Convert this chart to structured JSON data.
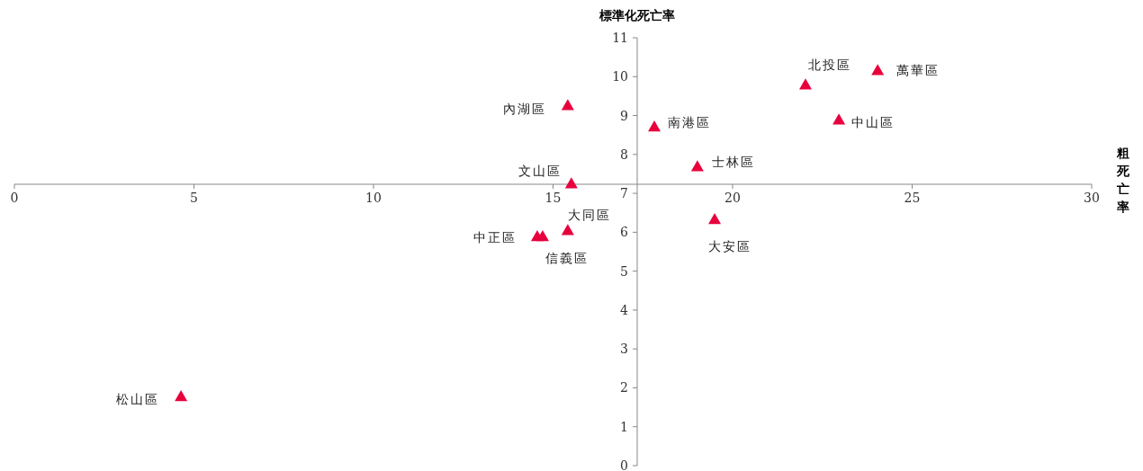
{
  "chart_data": {
    "type": "scatter",
    "xlabel": "粗死亡率",
    "ylabel": "標準化死亡率",
    "xlim": [
      0,
      30
    ],
    "xticks": [
      0,
      5,
      10,
      15,
      20,
      25,
      30
    ],
    "ylim": [
      0,
      11
    ],
    "yticks": [
      0,
      1,
      2,
      3,
      4,
      5,
      6,
      7,
      8,
      9,
      10,
      11
    ],
    "marker": "triangle",
    "grid": false,
    "series": [
      {
        "color": "#e8003d",
        "x": [
          4.64,
          14.56,
          14.71,
          15.41,
          15.51,
          15.41,
          17.82,
          19.02,
          19.5,
          22.03,
          22.96,
          24.04
        ],
        "values": [
          1.78,
          5.89,
          5.89,
          6.05,
          7.25,
          9.26,
          8.71,
          7.69,
          6.33,
          9.79,
          8.89,
          10.16
        ]
      }
    ],
    "annotations": [
      {
        "text": "松山區",
        "x": 4.64,
        "y": 1.78
      },
      {
        "text": "中正區",
        "x": 14.56,
        "y": 5.89
      },
      {
        "text": "信義區",
        "x": 14.71,
        "y": 5.89
      },
      {
        "text": "大同區",
        "x": 15.41,
        "y": 6.05
      },
      {
        "text": "文山區",
        "x": 15.51,
        "y": 7.25
      },
      {
        "text": "內湖區",
        "x": 15.41,
        "y": 9.26
      },
      {
        "text": "南港區",
        "x": 17.82,
        "y": 8.71
      },
      {
        "text": "士林區",
        "x": 19.02,
        "y": 7.69
      },
      {
        "text": "大安區",
        "x": 19.5,
        "y": 6.33
      },
      {
        "text": "北投區",
        "x": 22.03,
        "y": 9.79
      },
      {
        "text": "中山區",
        "x": 22.96,
        "y": 8.89
      },
      {
        "text": "萬華區",
        "x": 24.04,
        "y": 10.16
      }
    ]
  }
}
